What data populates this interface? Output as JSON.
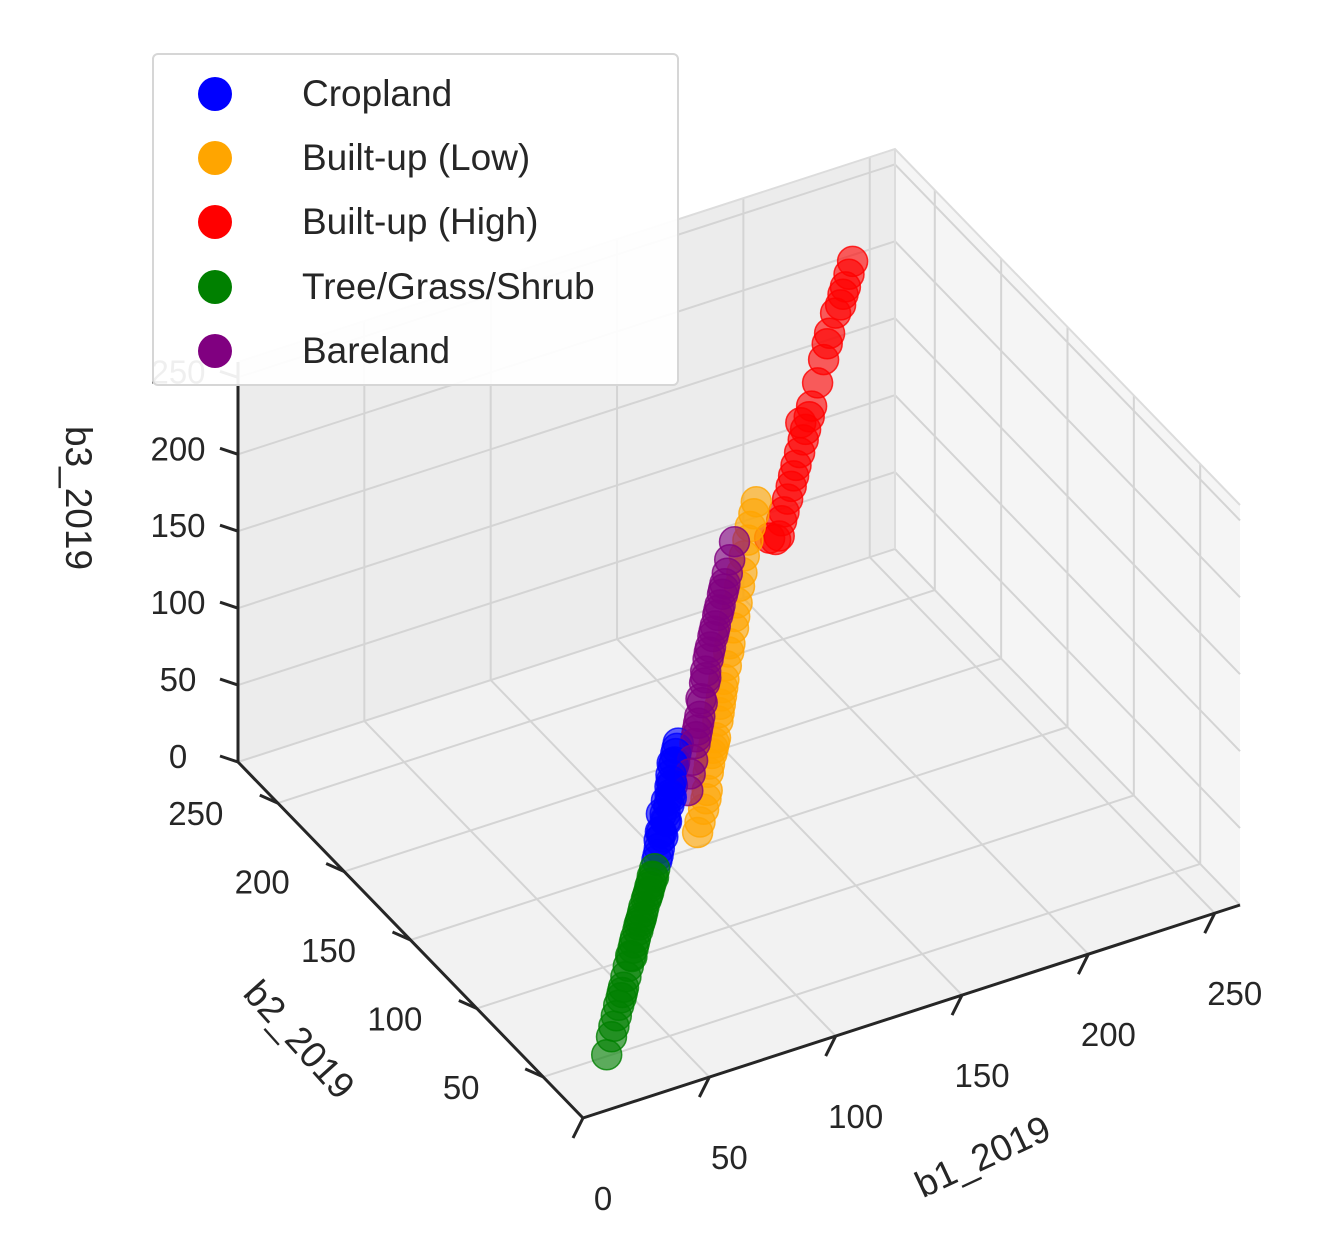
{
  "chart_data": {
    "type": "scatter",
    "subtype": "3d-scatter",
    "title": "",
    "xlabel": "b1_2019",
    "ylabel": "b2_2019",
    "zlabel": "b3_2019",
    "xlim": [
      0,
      260
    ],
    "ylim": [
      20,
      280
    ],
    "zlim": [
      0,
      260
    ],
    "x_ticks": [
      "0",
      "50",
      "100",
      "150",
      "200",
      "250"
    ],
    "y_ticks": [
      "50",
      "100",
      "150",
      "200",
      "250"
    ],
    "z_ticks": [
      "0",
      "50",
      "100",
      "150",
      "200",
      "250"
    ],
    "grid": true,
    "legend_position": "top-left",
    "series": [
      {
        "name": "Cropland",
        "color": "#0000ff",
        "points": [
          [
            70,
            95,
            82
          ],
          [
            72,
            98,
            90
          ],
          [
            75,
            100,
            95
          ],
          [
            78,
            103,
            100
          ],
          [
            80,
            106,
            104
          ],
          [
            82,
            108,
            107
          ],
          [
            68,
            92,
            75
          ],
          [
            66,
            90,
            70
          ],
          [
            74,
            99,
            88
          ],
          [
            77,
            101,
            97
          ],
          [
            81,
            107,
            110
          ],
          [
            84,
            110,
            112
          ],
          [
            79,
            104,
            102
          ],
          [
            73,
            97,
            86
          ],
          [
            71,
            96,
            80
          ],
          [
            76,
            100,
            92
          ],
          [
            83,
            109,
            108
          ],
          [
            85,
            111,
            114
          ],
          [
            69,
            94,
            78
          ],
          [
            67,
            91,
            72
          ],
          [
            80,
            105,
            98
          ],
          [
            78,
            102,
            94
          ],
          [
            74,
            98,
            84
          ],
          [
            72,
            97,
            76
          ],
          [
            86,
            112,
            116
          ]
        ]
      },
      {
        "name": "Built-up (Low)",
        "color": "#ffa500",
        "points": [
          [
            95,
            110,
            70
          ],
          [
            98,
            113,
            78
          ],
          [
            100,
            116,
            86
          ],
          [
            103,
            119,
            94
          ],
          [
            106,
            122,
            100
          ],
          [
            108,
            124,
            108
          ],
          [
            110,
            126,
            116
          ],
          [
            112,
            128,
            124
          ],
          [
            115,
            131,
            134
          ],
          [
            118,
            134,
            144
          ],
          [
            122,
            138,
            156
          ],
          [
            126,
            142,
            170
          ],
          [
            130,
            146,
            184
          ],
          [
            135,
            151,
            196
          ],
          [
            140,
            156,
            205
          ],
          [
            97,
            112,
            74
          ],
          [
            101,
            117,
            90
          ],
          [
            105,
            121,
            98
          ],
          [
            109,
            125,
            112
          ],
          [
            113,
            129,
            128
          ],
          [
            117,
            133,
            140
          ],
          [
            121,
            137,
            150
          ],
          [
            92,
            107,
            66
          ],
          [
            90,
            105,
            62
          ],
          [
            104,
            120,
            96
          ],
          [
            111,
            127,
            120
          ],
          [
            124,
            140,
            162
          ],
          [
            128,
            144,
            176
          ],
          [
            133,
            149,
            190
          ],
          [
            138,
            154,
            200
          ]
        ]
      },
      {
        "name": "Built-up (High)",
        "color": "#ff0000",
        "points": [
          [
            200,
            215,
            230
          ],
          [
            205,
            220,
            236
          ],
          [
            210,
            224,
            242
          ],
          [
            215,
            229,
            248
          ],
          [
            218,
            232,
            252
          ],
          [
            212,
            226,
            244
          ],
          [
            208,
            222,
            238
          ],
          [
            190,
            205,
            212
          ],
          [
            185,
            200,
            204
          ],
          [
            180,
            195,
            196
          ],
          [
            175,
            190,
            188
          ],
          [
            170,
            185,
            180
          ],
          [
            165,
            180,
            172
          ],
          [
            160,
            175,
            165
          ],
          [
            155,
            170,
            160
          ],
          [
            178,
            193,
            192
          ],
          [
            183,
            198,
            200
          ],
          [
            195,
            210,
            220
          ],
          [
            198,
            213,
            226
          ],
          [
            172,
            187,
            184
          ],
          [
            168,
            183,
            176
          ],
          [
            162,
            177,
            168
          ],
          [
            150,
            165,
            168
          ],
          [
            176,
            191,
            206
          ],
          [
            158,
            173,
            158
          ]
        ]
      },
      {
        "name": "Tree/Grass/Shrub",
        "color": "#008000",
        "points": [
          [
            40,
            62,
            40
          ],
          [
            42,
            64,
            44
          ],
          [
            45,
            67,
            48
          ],
          [
            48,
            70,
            52
          ],
          [
            50,
            72,
            55
          ],
          [
            52,
            74,
            58
          ],
          [
            55,
            77,
            62
          ],
          [
            58,
            80,
            66
          ],
          [
            60,
            82,
            70
          ],
          [
            62,
            84,
            72
          ],
          [
            38,
            60,
            36
          ],
          [
            36,
            58,
            32
          ],
          [
            34,
            56,
            28
          ],
          [
            30,
            52,
            22
          ],
          [
            28,
            50,
            18
          ],
          [
            26,
            48,
            14
          ],
          [
            22,
            44,
            8
          ],
          [
            46,
            68,
            50
          ],
          [
            53,
            75,
            60
          ],
          [
            57,
            79,
            64
          ],
          [
            61,
            83,
            68
          ],
          [
            44,
            66,
            46
          ],
          [
            49,
            71,
            54
          ],
          [
            32,
            54,
            26
          ],
          [
            35,
            57,
            30
          ],
          [
            56,
            78,
            63
          ],
          [
            59,
            81,
            67
          ],
          [
            43,
            65,
            42
          ],
          [
            51,
            73,
            56
          ]
        ]
      },
      {
        "name": "Bareland",
        "color": "#800080",
        "points": [
          [
            95,
            112,
            140
          ],
          [
            98,
            115,
            146
          ],
          [
            100,
            118,
            150
          ],
          [
            102,
            120,
            155
          ],
          [
            104,
            122,
            160
          ],
          [
            106,
            124,
            164
          ],
          [
            108,
            126,
            168
          ],
          [
            110,
            128,
            172
          ],
          [
            112,
            130,
            176
          ],
          [
            114,
            132,
            180
          ],
          [
            116,
            134,
            184
          ],
          [
            118,
            136,
            188
          ],
          [
            96,
            113,
            136
          ],
          [
            94,
            111,
            130
          ],
          [
            92,
            109,
            124
          ],
          [
            90,
            107,
            118
          ],
          [
            88,
            105,
            110
          ],
          [
            86,
            103,
            104
          ],
          [
            84,
            101,
            96
          ],
          [
            99,
            116,
            148
          ],
          [
            103,
            121,
            158
          ],
          [
            107,
            125,
            166
          ],
          [
            111,
            129,
            174
          ],
          [
            115,
            133,
            182
          ],
          [
            120,
            138,
            194
          ],
          [
            124,
            142,
            200
          ],
          [
            93,
            110,
            127
          ],
          [
            91,
            108,
            121
          ]
        ]
      }
    ]
  }
}
